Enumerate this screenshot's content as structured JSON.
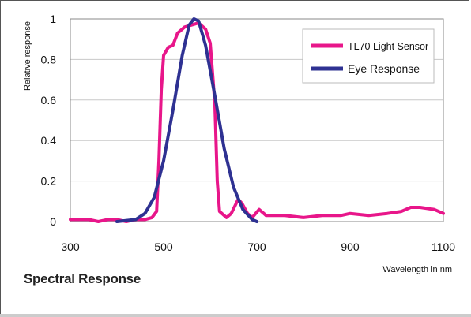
{
  "caption": "Spectral Response",
  "chart_data": {
    "type": "line",
    "xlabel": "Wavelength in nm",
    "ylabel": "Relative response",
    "xlim": [
      300,
      1100
    ],
    "ylim": [
      0,
      1
    ],
    "x_ticks": [
      "300",
      "500",
      "700",
      "900",
      "1100"
    ],
    "y_ticks": [
      "0",
      "0.2",
      "0.4",
      "0.6",
      "0.8",
      "1"
    ],
    "grid": "horizontal",
    "legend_position": "top-right",
    "series": [
      {
        "name": "TL70 Light Sensor",
        "color": "#e8168a",
        "points": [
          [
            300,
            0.01
          ],
          [
            340,
            0.01
          ],
          [
            360,
            0.0
          ],
          [
            380,
            0.01
          ],
          [
            400,
            0.01
          ],
          [
            420,
            0.0
          ],
          [
            440,
            0.01
          ],
          [
            460,
            0.01
          ],
          [
            475,
            0.02
          ],
          [
            485,
            0.05
          ],
          [
            490,
            0.3
          ],
          [
            495,
            0.65
          ],
          [
            500,
            0.82
          ],
          [
            510,
            0.86
          ],
          [
            520,
            0.87
          ],
          [
            530,
            0.93
          ],
          [
            545,
            0.96
          ],
          [
            560,
            0.97
          ],
          [
            575,
            0.98
          ],
          [
            590,
            0.95
          ],
          [
            600,
            0.88
          ],
          [
            610,
            0.58
          ],
          [
            615,
            0.2
          ],
          [
            620,
            0.05
          ],
          [
            635,
            0.02
          ],
          [
            645,
            0.04
          ],
          [
            660,
            0.11
          ],
          [
            668,
            0.09
          ],
          [
            680,
            0.04
          ],
          [
            690,
            0.02
          ],
          [
            705,
            0.06
          ],
          [
            720,
            0.03
          ],
          [
            760,
            0.03
          ],
          [
            800,
            0.02
          ],
          [
            840,
            0.03
          ],
          [
            880,
            0.03
          ],
          [
            900,
            0.04
          ],
          [
            940,
            0.03
          ],
          [
            980,
            0.04
          ],
          [
            1010,
            0.05
          ],
          [
            1030,
            0.07
          ],
          [
            1050,
            0.07
          ],
          [
            1080,
            0.06
          ],
          [
            1100,
            0.04
          ]
        ]
      },
      {
        "name": "Eye Response",
        "color": "#2e3192",
        "points": [
          [
            400,
            0.0
          ],
          [
            440,
            0.01
          ],
          [
            460,
            0.04
          ],
          [
            480,
            0.12
          ],
          [
            500,
            0.3
          ],
          [
            520,
            0.55
          ],
          [
            540,
            0.82
          ],
          [
            555,
            0.97
          ],
          [
            565,
            1.0
          ],
          [
            575,
            0.99
          ],
          [
            590,
            0.87
          ],
          [
            610,
            0.62
          ],
          [
            630,
            0.36
          ],
          [
            650,
            0.17
          ],
          [
            670,
            0.06
          ],
          [
            690,
            0.01
          ],
          [
            700,
            0.0
          ]
        ]
      }
    ]
  }
}
